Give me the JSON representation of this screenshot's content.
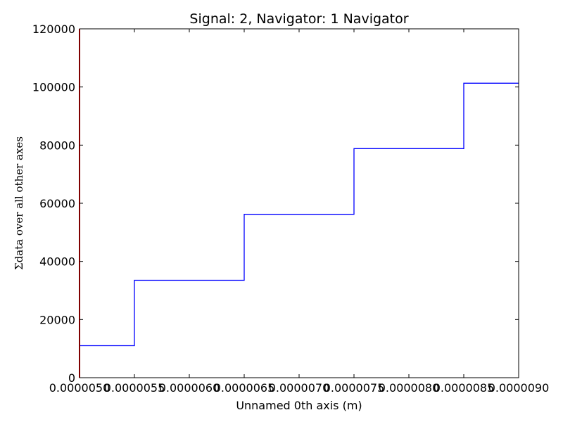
{
  "chart_data": {
    "type": "line",
    "style": "step",
    "title": "Signal: 2, Navigator: 1 Navigator",
    "xlabel": "Unnamed 0th axis (m)",
    "ylabel": "Σdata over all other axes",
    "xlim": [
      5e-06,
      9e-06
    ],
    "ylim": [
      0,
      120000
    ],
    "x_ticks": [
      5e-06,
      5.5e-06,
      6e-06,
      6.5e-06,
      7e-06,
      7.5e-06,
      8e-06,
      8.5e-06,
      9e-06
    ],
    "x_tick_labels": [
      "0.0000050",
      "0.0000055",
      "0.0000060",
      "0.0000065",
      "0.0000070",
      "0.0000075",
      "0.0000080",
      "0.0000085",
      "0.0000090"
    ],
    "y_ticks": [
      0,
      20000,
      40000,
      60000,
      80000,
      100000,
      120000
    ],
    "y_tick_labels": [
      "0",
      "20000",
      "40000",
      "60000",
      "80000",
      "100000",
      "120000"
    ],
    "grid": false,
    "series": [
      {
        "color": "#0000ff",
        "x": [
          5e-06,
          5.5e-06,
          6.5e-06,
          7.5e-06,
          8.5e-06
        ],
        "values": [
          11000,
          33500,
          56200,
          78800,
          101300
        ]
      }
    ],
    "marker_line": {
      "x": 5e-06,
      "color": "#ff0000"
    }
  }
}
